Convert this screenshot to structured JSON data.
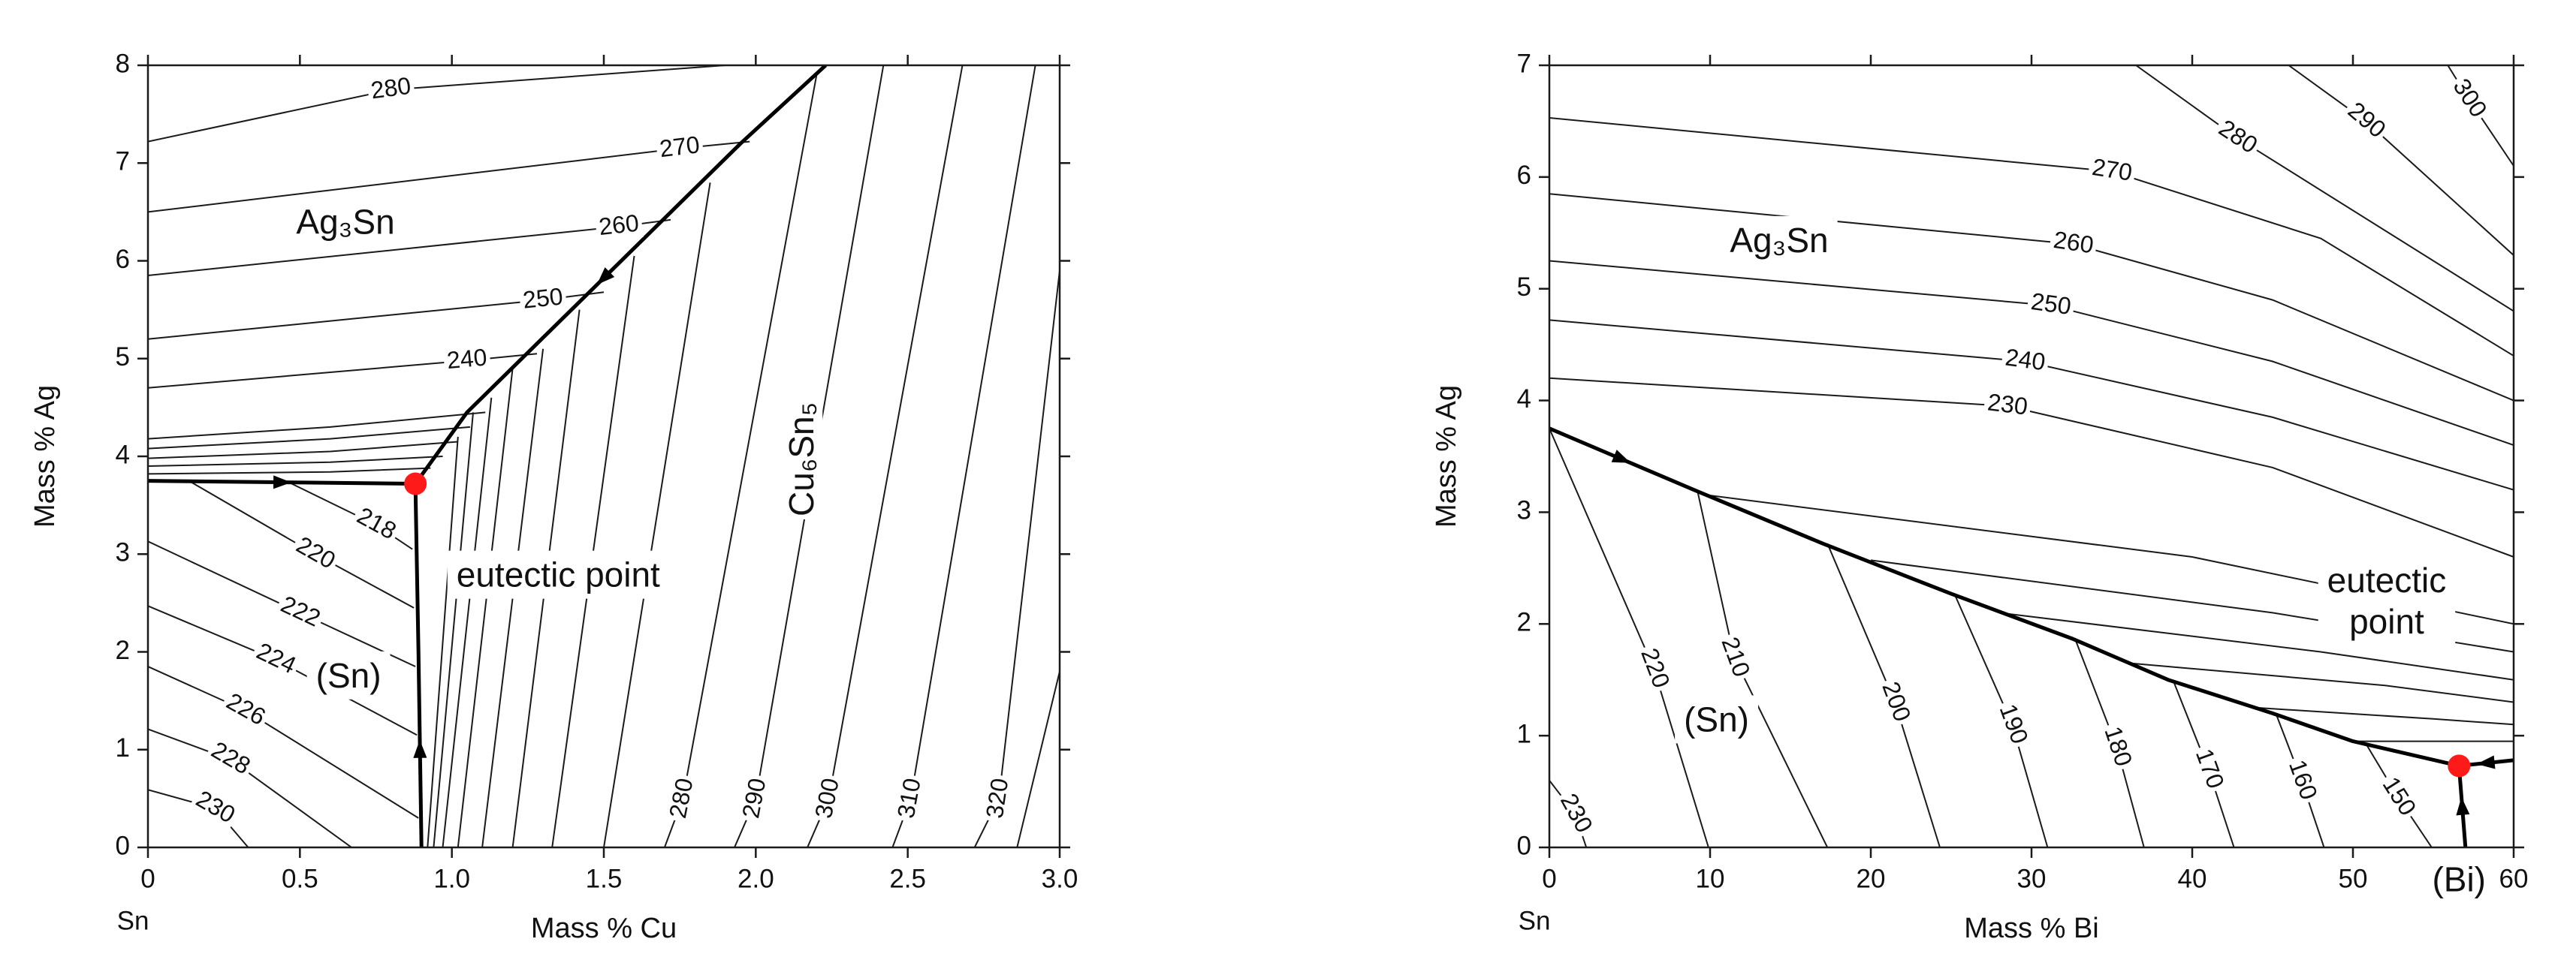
{
  "chart_data": [
    {
      "type": "contour",
      "xlabel": "Mass % Cu",
      "ylabel": "Mass % Ag",
      "origin_label": "Sn",
      "xlim": [
        0,
        3
      ],
      "ylim": [
        0,
        8
      ],
      "xticks": [
        0,
        0.5,
        {
          "value": 1,
          "label": "1.0"
        },
        1.5,
        {
          "value": 2,
          "label": "2.0"
        },
        2.5,
        {
          "value": 3,
          "label": "3.0"
        }
      ],
      "yticks": [
        0,
        1,
        2,
        3,
        4,
        5,
        6,
        7,
        8
      ],
      "line_color": "#1a1a1a",
      "isotherms": [
        {
          "name": "280",
          "x": [
            0,
            0.8,
            1.9
          ],
          "y": [
            7.22,
            7.75,
            8
          ]
        },
        {
          "name": "270",
          "x": [
            0,
            1.75,
            1.98
          ],
          "y": [
            6.5,
            7.15,
            7.22
          ]
        },
        {
          "name": "260",
          "x": [
            0,
            1.55,
            1.72
          ],
          "y": [
            5.85,
            6.35,
            6.42
          ]
        },
        {
          "name": "250",
          "x": [
            0,
            1.3,
            1.5
          ],
          "y": [
            5.2,
            5.6,
            5.68
          ]
        },
        {
          "name": "240",
          "x": [
            0,
            1.05,
            1.28
          ],
          "y": [
            4.7,
            4.98,
            5.05
          ]
        },
        {
          "x": [
            0,
            0.6,
            1.11
          ],
          "y": [
            4.18,
            4.3,
            4.45
          ]
        },
        {
          "x": [
            0,
            0.6,
            1.06
          ],
          "y": [
            4.08,
            4.18,
            4.3
          ]
        },
        {
          "x": [
            0,
            0.6,
            1.02
          ],
          "y": [
            3.98,
            4.05,
            4.15
          ]
        },
        {
          "x": [
            0,
            0.6,
            0.97
          ],
          "y": [
            3.9,
            3.94,
            4.0
          ]
        },
        {
          "x": [
            0,
            0.6,
            0.93
          ],
          "y": [
            3.82,
            3.84,
            3.88
          ]
        },
        {
          "name": "218",
          "x": [
            0.46,
            0.75,
            0.87
          ],
          "y": [
            3.74,
            3.3,
            3.05
          ]
        },
        {
          "name": "220",
          "x": [
            0.14,
            0.55,
            0.875
          ],
          "y": [
            3.74,
            3.0,
            2.45
          ]
        },
        {
          "name": "222",
          "x": [
            0,
            0.5,
            0.88
          ],
          "y": [
            3.13,
            2.4,
            1.85
          ]
        },
        {
          "name": "224",
          "x": [
            0,
            0.42,
            0.885
          ],
          "y": [
            2.47,
            1.92,
            1.15
          ]
        },
        {
          "name": "226",
          "x": [
            0,
            0.32,
            0.89
          ],
          "y": [
            1.85,
            1.4,
            0.3
          ]
        },
        {
          "name": "228",
          "x": [
            0,
            0.27,
            0.67
          ],
          "y": [
            1.21,
            0.9,
            0
          ]
        },
        {
          "name": "230",
          "x": [
            0,
            0.22,
            0.33
          ],
          "y": [
            0.59,
            0.4,
            0
          ]
        },
        {
          "x": [
            0.92,
            1.02
          ],
          "y": [
            0,
            4.2
          ]
        },
        {
          "x": [
            0.94,
            1.07
          ],
          "y": [
            0,
            4.45
          ]
        },
        {
          "x": [
            0.97,
            1.13
          ],
          "y": [
            0,
            4.6
          ]
        },
        {
          "x": [
            1.02,
            1.2
          ],
          "y": [
            0,
            4.9
          ]
        },
        {
          "x": [
            1.1,
            1.3
          ],
          "y": [
            0,
            5.1
          ]
        },
        {
          "x": [
            1.2,
            1.42
          ],
          "y": [
            0,
            5.5
          ]
        },
        {
          "x": [
            1.33,
            1.6
          ],
          "y": [
            0,
            6.05
          ]
        },
        {
          "x": [
            1.5,
            1.85
          ],
          "y": [
            0,
            6.8
          ]
        },
        {
          "name": "280",
          "x": [
            1.7,
            1.76,
            2.2
          ],
          "y": [
            0,
            0.5,
            7.9
          ]
        },
        {
          "name": "290",
          "x": [
            1.93,
            2.0,
            2.42
          ],
          "y": [
            0,
            0.5,
            8
          ]
        },
        {
          "name": "300",
          "x": [
            2.17,
            2.24,
            2.68
          ],
          "y": [
            0,
            0.5,
            8
          ]
        },
        {
          "name": "310",
          "x": [
            2.45,
            2.51,
            2.92
          ],
          "y": [
            0,
            0.5,
            8
          ]
        },
        {
          "name": "320",
          "x": [
            2.72,
            2.8,
            3.0
          ],
          "y": [
            0,
            0.5,
            5.9
          ]
        },
        {
          "x": [
            2.86,
            3.0
          ],
          "y": [
            0,
            1.8
          ]
        }
      ],
      "boundaries": [
        {
          "x": [
            0,
            0.88
          ],
          "y": [
            3.75,
            3.72
          ]
        },
        {
          "x": [
            2.23,
            1.95,
            1.05,
            0.88
          ],
          "y": [
            8,
            7.2,
            4.45,
            3.72
          ]
        },
        {
          "x": [
            0.9,
            0.89,
            0.88
          ],
          "y": [
            0,
            2.0,
            3.72
          ]
        }
      ],
      "eutectic": {
        "x": 0.88,
        "y": 3.72,
        "color": "#ff1a1a"
      },
      "annotations": [
        {
          "text": "Ag₃Sn",
          "x": 0.65,
          "y": 6.37
        },
        {
          "text": "Cu₆Sn₅",
          "x": 2.16,
          "y": 3.97,
          "orientation": "vertical"
        },
        {
          "text": "(Sn)",
          "x": 0.66,
          "y": 1.73
        },
        {
          "text": "eutectic point",
          "x": 1.35,
          "y": 2.76
        }
      ]
    },
    {
      "type": "contour",
      "xlabel": "Mass % Bi",
      "ylabel": "Mass % Ag",
      "origin_label": "Sn",
      "xlim": [
        0,
        60
      ],
      "ylim": [
        0,
        7
      ],
      "xticks": [
        0,
        10,
        20,
        30,
        40,
        50,
        60
      ],
      "yticks": [
        0,
        1,
        2,
        3,
        4,
        5,
        6,
        7
      ],
      "line_color": "#1a1a1a",
      "isotherms": [
        {
          "name": "300",
          "x": [
            55.9,
            57.2,
            60
          ],
          "y": [
            7,
            6.7,
            6.1
          ]
        },
        {
          "name": "290",
          "x": [
            46,
            50.8,
            60
          ],
          "y": [
            7,
            6.5,
            5.3
          ]
        },
        {
          "name": "280",
          "x": [
            36.5,
            42.8,
            60
          ],
          "y": [
            7,
            6.35,
            4.8
          ]
        },
        {
          "name": "270",
          "x": [
            0,
            35,
            48,
            60
          ],
          "y": [
            6.53,
            6.05,
            5.45,
            4.4
          ]
        },
        {
          "name": "260",
          "x": [
            0,
            32.6,
            45,
            60
          ],
          "y": [
            5.85,
            5.4,
            4.9,
            4.0
          ]
        },
        {
          "name": "250",
          "x": [
            0,
            31.2,
            45,
            60
          ],
          "y": [
            5.25,
            4.85,
            4.35,
            3.6
          ]
        },
        {
          "name": "240",
          "x": [
            0,
            29.6,
            45,
            60
          ],
          "y": [
            4.72,
            4.35,
            3.85,
            3.2
          ]
        },
        {
          "name": "230",
          "x": [
            0,
            28.5,
            45,
            60
          ],
          "y": [
            4.2,
            3.95,
            3.4,
            2.6
          ]
        },
        {
          "x": [
            10,
            40,
            60
          ],
          "y": [
            3.15,
            2.6,
            2.0
          ]
        },
        {
          "x": [
            20,
            45,
            60
          ],
          "y": [
            2.57,
            2.1,
            1.75
          ]
        },
        {
          "x": [
            28,
            48,
            60
          ],
          "y": [
            2.1,
            1.75,
            1.5
          ]
        },
        {
          "x": [
            36,
            52,
            60
          ],
          "y": [
            1.65,
            1.45,
            1.3
          ]
        },
        {
          "x": [
            44,
            55,
            60
          ],
          "y": [
            1.25,
            1.15,
            1.1
          ]
        },
        {
          "x": [
            50,
            60
          ],
          "y": [
            0.95,
            0.95
          ]
        },
        {
          "name": "230",
          "x": [
            0,
            1.6,
            2.3
          ],
          "y": [
            0.6,
            0.3,
            0
          ]
        },
        {
          "name": "220",
          "x": [
            0,
            6.5,
            9.9
          ],
          "y": [
            3.75,
            1.6,
            0
          ]
        },
        {
          "name": "210",
          "x": [
            9.2,
            11.5,
            17.3
          ],
          "y": [
            3.2,
            1.7,
            0
          ]
        },
        {
          "name": "200",
          "x": [
            17.3,
            21.5,
            24.3
          ],
          "y": [
            2.72,
            1.3,
            0
          ]
        },
        {
          "name": "190",
          "x": [
            25.2,
            28.8,
            31
          ],
          "y": [
            2.27,
            1.1,
            0
          ]
        },
        {
          "name": "180",
          "x": [
            32.7,
            35.3,
            37
          ],
          "y": [
            1.87,
            0.9,
            0
          ]
        },
        {
          "name": "170",
          "x": [
            38.8,
            41,
            42.6
          ],
          "y": [
            1.5,
            0.7,
            0
          ]
        },
        {
          "name": "160",
          "x": [
            45.2,
            46.8,
            48.2
          ],
          "y": [
            1.2,
            0.6,
            0
          ]
        },
        {
          "name": "150",
          "x": [
            50.8,
            52.8,
            54.9
          ],
          "y": [
            0.93,
            0.45,
            0
          ]
        }
      ],
      "boundaries": [
        {
          "x": [
            0,
            9,
            17,
            25,
            32.5,
            38.5,
            45,
            50,
            56.6
          ],
          "y": [
            3.75,
            3.2,
            2.72,
            2.27,
            1.87,
            1.5,
            1.2,
            0.95,
            0.73
          ]
        },
        {
          "x": [
            57,
            56.6
          ],
          "y": [
            0,
            0.73
          ]
        },
        {
          "x": [
            60,
            56.6
          ],
          "y": [
            0.78,
            0.73
          ]
        }
      ],
      "eutectic": {
        "x": 56.6,
        "y": 0.73,
        "color": "#ff1a1a"
      },
      "annotations": [
        {
          "text": "Ag₃Sn",
          "x": 14.3,
          "y": 5.41
        },
        {
          "text": "(Sn)",
          "x": 10.4,
          "y": 1.12
        },
        {
          "text": [
            "eutectic",
            "point"
          ],
          "x": 52.1,
          "y": 2.18
        },
        {
          "text": "(Bi)",
          "x": 56.6,
          "y": -0.31
        }
      ]
    }
  ]
}
